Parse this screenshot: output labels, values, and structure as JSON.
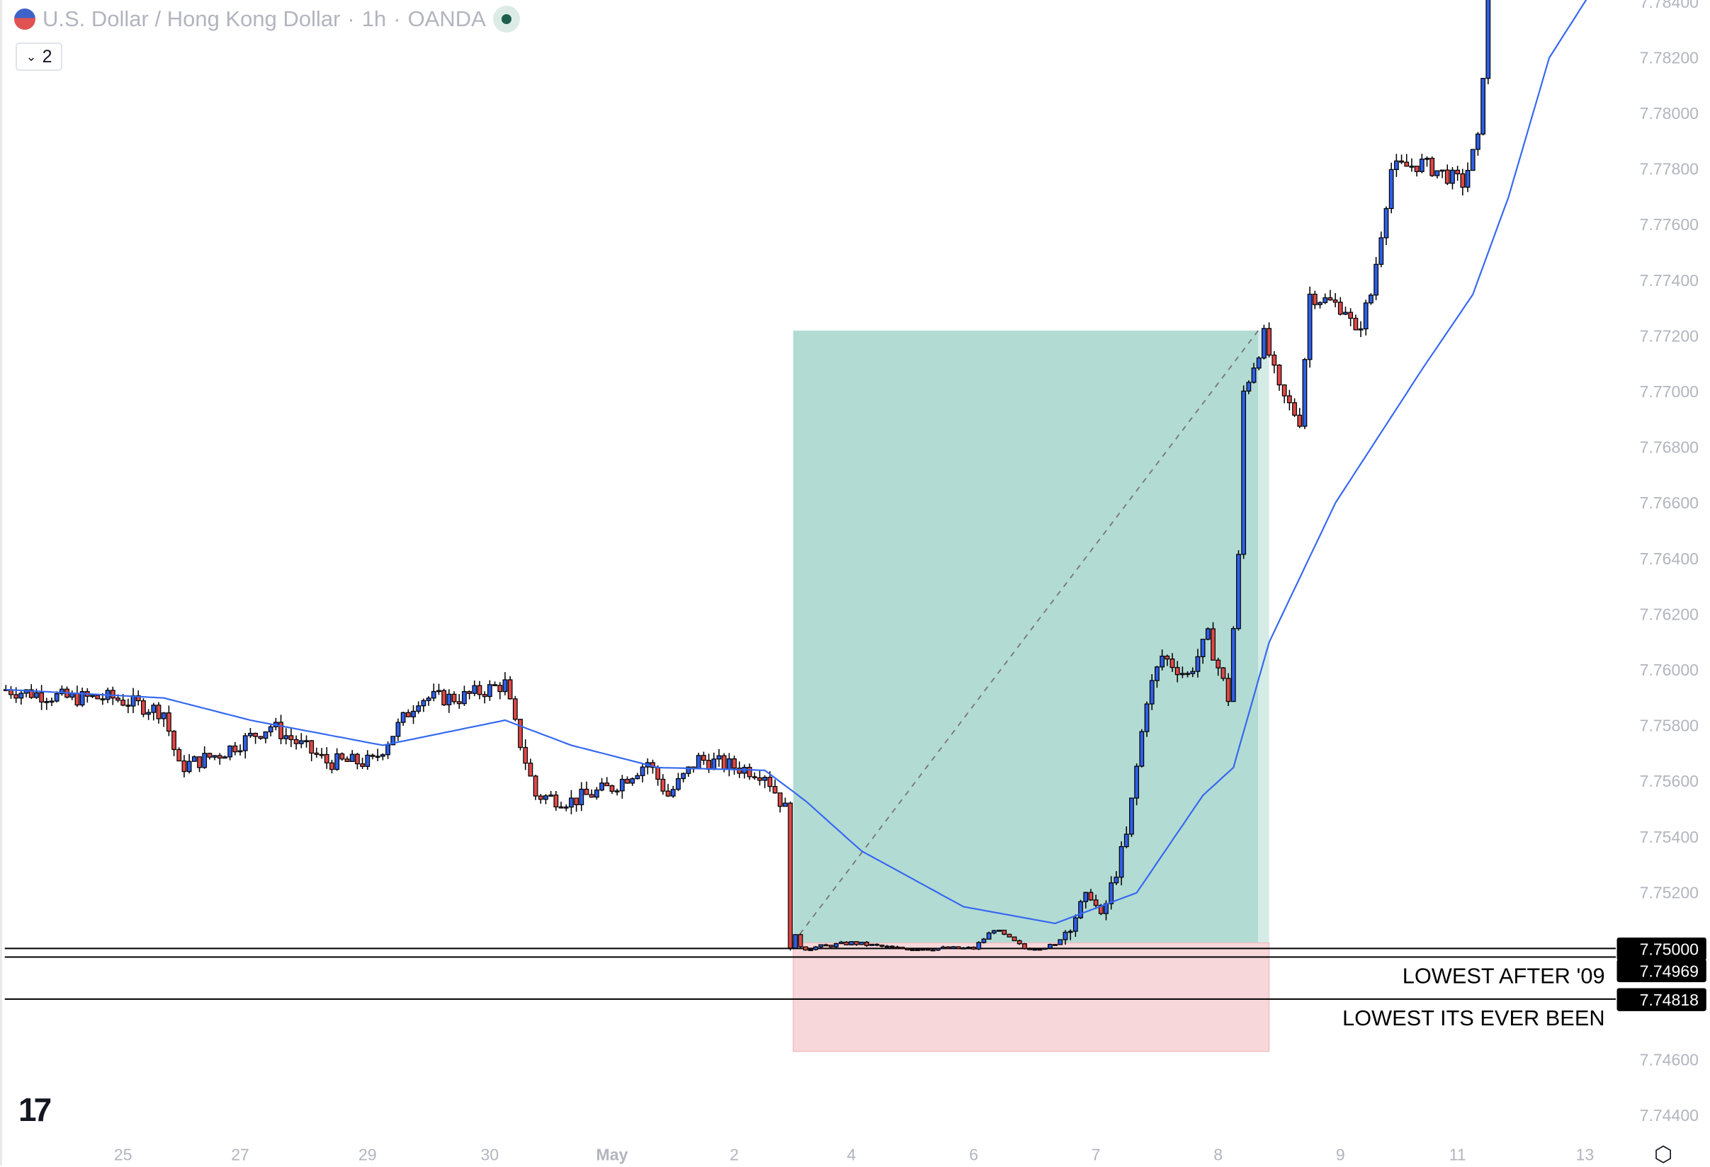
{
  "header": {
    "symbol_title": "U.S. Dollar / Hong Kong Dollar",
    "interval": "1h",
    "exchange": "OANDA",
    "separator": "·",
    "indicator_count": "2"
  },
  "colors": {
    "up": "#2f5fe8",
    "down": "#e04848",
    "ma": "#3467f0",
    "profit": "#b2dbd3",
    "loss": "#f7d7da",
    "axis_text": "#b2b5be"
  },
  "annotations": {
    "lines": [
      {
        "price": 7.75,
        "label": "7.75000"
      },
      {
        "price": 7.74969,
        "label": "7.74969",
        "text": "LOWEST AFTER '09"
      },
      {
        "price": 7.74818,
        "label": "7.74818",
        "text": "LOWEST ITS EVER BEEN"
      }
    ],
    "position": {
      "entry": 7.7502,
      "target": 7.7722,
      "stop": 7.7463,
      "start_bar": 155,
      "end_bar": 245
    }
  },
  "chart_data": {
    "type": "candlestick",
    "title": "U.S. Dollar / Hong Kong Dollar · 1h · OANDA",
    "ylim": [
      7.744,
      7.784
    ],
    "y_ticks": [
      "7.78400",
      "7.78200",
      "7.78000",
      "7.77800",
      "7.77600",
      "7.77400",
      "7.77200",
      "7.77000",
      "7.76800",
      "7.76600",
      "7.76400",
      "7.76200",
      "7.76000",
      "7.75800",
      "7.75600",
      "7.75400",
      "7.75200",
      "7.74600",
      "7.74400"
    ],
    "x_ticks": [
      {
        "label": "25",
        "bar": 23
      },
      {
        "label": "27",
        "bar": 46
      },
      {
        "label": "29",
        "bar": 71
      },
      {
        "label": "30",
        "bar": 95
      },
      {
        "label": "May",
        "bar": 119,
        "bold": true
      },
      {
        "label": "2",
        "bar": 143
      },
      {
        "label": "4",
        "bar": 166
      },
      {
        "label": "6",
        "bar": 190
      },
      {
        "label": "7",
        "bar": 214
      },
      {
        "label": "8",
        "bar": 238
      },
      {
        "label": "9",
        "bar": 262
      },
      {
        "label": "11",
        "bar": 285
      },
      {
        "label": "13",
        "bar": 310
      }
    ],
    "bars": 291,
    "close_keypoints": [
      [
        0,
        7.7593
      ],
      [
        12,
        7.759
      ],
      [
        21,
        7.759
      ],
      [
        31,
        7.7585
      ],
      [
        34,
        7.7565
      ],
      [
        42,
        7.757
      ],
      [
        52,
        7.758
      ],
      [
        63,
        7.7567
      ],
      [
        72,
        7.7567
      ],
      [
        81,
        7.759
      ],
      [
        89,
        7.759
      ],
      [
        98,
        7.7595
      ],
      [
        100,
        7.758
      ],
      [
        104,
        7.7555
      ],
      [
        111,
        7.7553
      ],
      [
        119,
        7.7558
      ],
      [
        126,
        7.7567
      ],
      [
        130,
        7.7555
      ],
      [
        136,
        7.7568
      ],
      [
        149,
        7.7563
      ],
      [
        153,
        7.755
      ],
      [
        154,
        7.7503
      ],
      [
        157,
        7.75
      ],
      [
        166,
        7.7502
      ],
      [
        175,
        7.75
      ],
      [
        190,
        7.75
      ],
      [
        194,
        7.7507
      ],
      [
        200,
        7.75
      ],
      [
        206,
        7.7501
      ],
      [
        213,
        7.752
      ],
      [
        215,
        7.751
      ],
      [
        220,
        7.754
      ],
      [
        224,
        7.759
      ],
      [
        227,
        7.7605
      ],
      [
        232,
        7.7598
      ],
      [
        236,
        7.7612
      ],
      [
        240,
        7.759
      ],
      [
        242,
        7.764
      ],
      [
        243,
        7.77
      ],
      [
        247,
        7.772
      ],
      [
        250,
        7.77
      ],
      [
        254,
        7.769
      ],
      [
        256,
        7.7735
      ],
      [
        263,
        7.773
      ],
      [
        265,
        7.772
      ],
      [
        268,
        7.7735
      ],
      [
        272,
        7.778
      ],
      [
        278,
        7.7782
      ],
      [
        286,
        7.7775
      ],
      [
        289,
        7.779
      ],
      [
        291,
        7.784
      ]
    ],
    "ma_keypoints": [
      [
        0,
        7.7593
      ],
      [
        31,
        7.759
      ],
      [
        48,
        7.7582
      ],
      [
        74,
        7.7573
      ],
      [
        98,
        7.7582
      ],
      [
        111,
        7.7573
      ],
      [
        128,
        7.7565
      ],
      [
        149,
        7.7564
      ],
      [
        157,
        7.7553
      ],
      [
        168,
        7.7535
      ],
      [
        188,
        7.7515
      ],
      [
        206,
        7.7509
      ],
      [
        222,
        7.752
      ],
      [
        235,
        7.7555
      ],
      [
        241,
        7.7565
      ],
      [
        248,
        7.761
      ],
      [
        261,
        7.766
      ],
      [
        278,
        7.7708
      ],
      [
        288,
        7.7735
      ],
      [
        295,
        7.777
      ],
      [
        303,
        7.782
      ],
      [
        311,
        7.7843
      ]
    ]
  }
}
